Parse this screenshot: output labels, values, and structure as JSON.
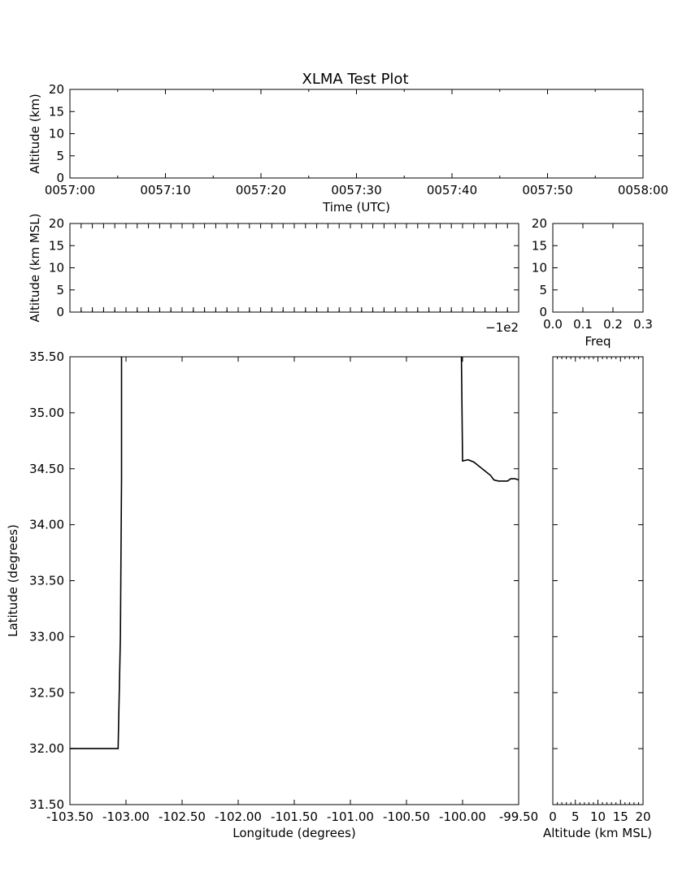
{
  "chart_data": [
    {
      "id": "time_altitude",
      "type": "scatter",
      "title": "XLMA Test Plot",
      "xlabel": "Time (UTC)",
      "ylabel": "Altitude (km)",
      "xlim": [
        "0057:00",
        "0058:00"
      ],
      "ylim": [
        0,
        20
      ],
      "x_ticks": [
        "0057:00",
        "0057:10",
        "0057:20",
        "0057:30",
        "0057:40",
        "0057:50",
        "0058:00"
      ],
      "y_ticks": [
        "0",
        "5",
        "10",
        "15",
        "20"
      ],
      "points": []
    },
    {
      "id": "lon_altitude",
      "type": "scatter",
      "xlabel": "",
      "ylabel": "Altitude (km MSL)",
      "xlim": [
        -103.5,
        -99.5
      ],
      "ylim": [
        0,
        20
      ],
      "x_offset_label": "−1e2",
      "y_ticks": [
        "0",
        "5",
        "10",
        "15",
        "20"
      ],
      "points": []
    },
    {
      "id": "altitude_histogram",
      "type": "bar",
      "xlabel": "Freq",
      "ylabel": "",
      "xlim": [
        0,
        0.3
      ],
      "ylim": [
        0,
        20
      ],
      "x_ticks": [
        "0.0",
        "0.1",
        "0.2",
        "0.3"
      ],
      "y_ticks": [
        "0",
        "5",
        "10",
        "15",
        "20"
      ],
      "values": []
    },
    {
      "id": "plan_view",
      "type": "line",
      "xlabel": "Longitude (degrees)",
      "ylabel": "Latitude (degrees)",
      "xlim": [
        -103.5,
        -99.5
      ],
      "ylim": [
        31.5,
        35.5
      ],
      "x_ticks": [
        "-103.50",
        "-103.00",
        "-102.50",
        "-102.00",
        "-101.50",
        "-101.00",
        "-100.50",
        "-100.00",
        "-99.50"
      ],
      "y_ticks": [
        "31.50",
        "32.00",
        "32.50",
        "33.00",
        "33.50",
        "34.00",
        "34.50",
        "35.00",
        "35.50"
      ],
      "series": [
        {
          "x": [
            -103.5,
            -103.07,
            -103.05,
            -103.04,
            -103.04
          ],
          "y": [
            32.0,
            32.0,
            33.0,
            34.4,
            35.5
          ]
        },
        {
          "x": [
            -100.01,
            -100.0,
            -99.95,
            -99.9,
            -99.85,
            -99.8,
            -99.75,
            -99.72,
            -99.68,
            -99.6,
            -99.57,
            -99.53,
            -99.5
          ],
          "y": [
            35.5,
            34.57,
            34.58,
            34.56,
            34.52,
            34.48,
            34.44,
            34.4,
            34.39,
            34.39,
            34.41,
            34.41,
            34.4
          ]
        }
      ]
    },
    {
      "id": "lat_altitude",
      "type": "scatter",
      "xlabel": "Altitude (km MSL)",
      "ylabel": "",
      "xlim": [
        0,
        20
      ],
      "ylim": [
        31.5,
        35.5
      ],
      "x_ticks": [
        "0",
        "5",
        "10",
        "15",
        "20"
      ],
      "points": []
    }
  ]
}
